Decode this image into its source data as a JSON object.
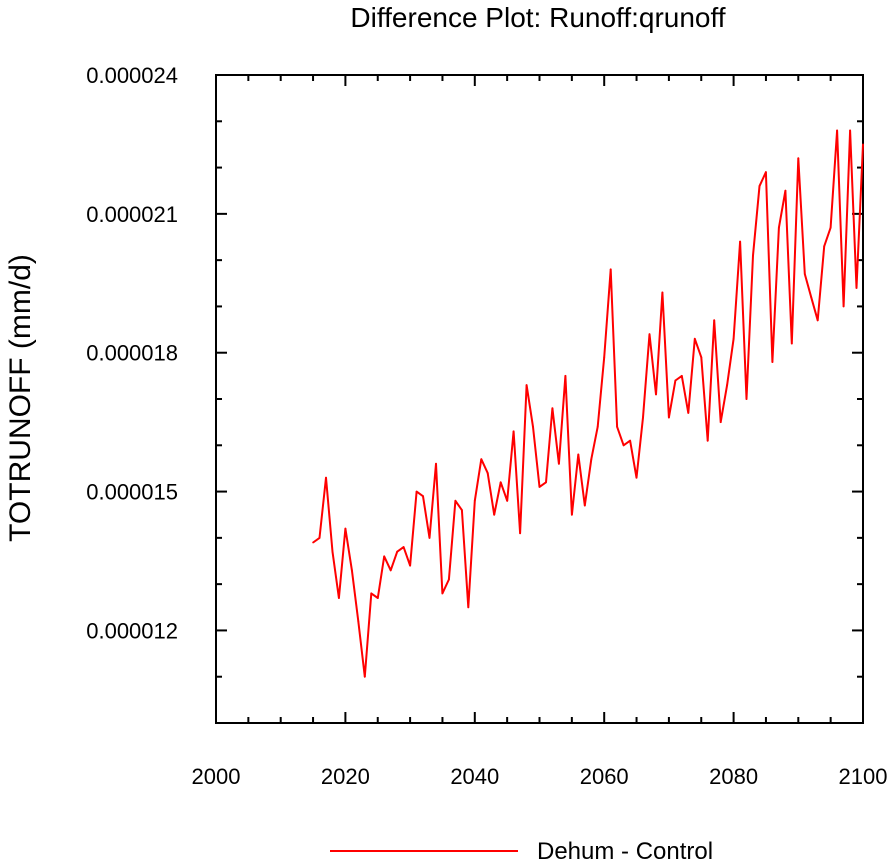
{
  "chart_data": {
    "type": "line",
    "title": "Difference Plot: Runoff:qrunoff",
    "xlabel": "",
    "ylabel": "TOTRUNOFF  (mm/d)",
    "xlim": [
      2000,
      2100
    ],
    "ylim": [
      1e-05,
      2.4e-05
    ],
    "xticks": [
      2000,
      2020,
      2040,
      2060,
      2080,
      2100
    ],
    "xtick_labels": [
      "2000",
      "2020",
      "2040",
      "2060",
      "2080",
      "2100"
    ],
    "yticks": [
      1.2e-05,
      1.5e-05,
      1.8e-05,
      2.1e-05,
      2.4e-05
    ],
    "ytick_labels": [
      "0.000012",
      "0.000015",
      "0.000018",
      "0.000021",
      "0.000024"
    ],
    "grid": false,
    "legend_position": "bottom",
    "colors": {
      "series": "#ff0000",
      "axis": "#000000"
    },
    "series": [
      {
        "name": "Dehum - Control",
        "x": [
          2015,
          2016,
          2017,
          2018,
          2019,
          2020,
          2021,
          2022,
          2023,
          2024,
          2025,
          2026,
          2027,
          2028,
          2029,
          2030,
          2031,
          2032,
          2033,
          2034,
          2035,
          2036,
          2037,
          2038,
          2039,
          2040,
          2041,
          2042,
          2043,
          2044,
          2045,
          2046,
          2047,
          2048,
          2049,
          2050,
          2051,
          2052,
          2053,
          2054,
          2055,
          2056,
          2057,
          2058,
          2059,
          2060,
          2061,
          2062,
          2063,
          2064,
          2065,
          2066,
          2067,
          2068,
          2069,
          2070,
          2071,
          2072,
          2073,
          2074,
          2075,
          2076,
          2077,
          2078,
          2079,
          2080,
          2081,
          2082,
          2083,
          2084,
          2085,
          2086,
          2087,
          2088,
          2089,
          2090,
          2091,
          2092,
          2093,
          2094,
          2095,
          2096,
          2097,
          2098,
          2099,
          2100
        ],
        "values": [
          1.39e-05,
          1.4e-05,
          1.53e-05,
          1.37e-05,
          1.27e-05,
          1.42e-05,
          1.33e-05,
          1.22e-05,
          1.1e-05,
          1.28e-05,
          1.27e-05,
          1.36e-05,
          1.33e-05,
          1.37e-05,
          1.38e-05,
          1.34e-05,
          1.5e-05,
          1.49e-05,
          1.4e-05,
          1.56e-05,
          1.28e-05,
          1.31e-05,
          1.48e-05,
          1.46e-05,
          1.25e-05,
          1.48e-05,
          1.57e-05,
          1.54e-05,
          1.45e-05,
          1.52e-05,
          1.48e-05,
          1.63e-05,
          1.41e-05,
          1.73e-05,
          1.64e-05,
          1.51e-05,
          1.52e-05,
          1.68e-05,
          1.56e-05,
          1.75e-05,
          1.45e-05,
          1.58e-05,
          1.47e-05,
          1.57e-05,
          1.64e-05,
          1.79e-05,
          1.98e-05,
          1.64e-05,
          1.6e-05,
          1.61e-05,
          1.53e-05,
          1.66e-05,
          1.84e-05,
          1.71e-05,
          1.93e-05,
          1.66e-05,
          1.74e-05,
          1.75e-05,
          1.67e-05,
          1.83e-05,
          1.79e-05,
          1.61e-05,
          1.87e-05,
          1.65e-05,
          1.73e-05,
          1.83e-05,
          2.04e-05,
          1.7e-05,
          2.01e-05,
          2.16e-05,
          2.19e-05,
          1.78e-05,
          2.07e-05,
          2.15e-05,
          1.82e-05,
          2.22e-05,
          1.97e-05,
          1.92e-05,
          1.87e-05,
          2.03e-05,
          2.07e-05,
          2.28e-05,
          1.9e-05,
          2.28e-05,
          1.94e-05,
          2.25e-05
        ]
      }
    ]
  }
}
